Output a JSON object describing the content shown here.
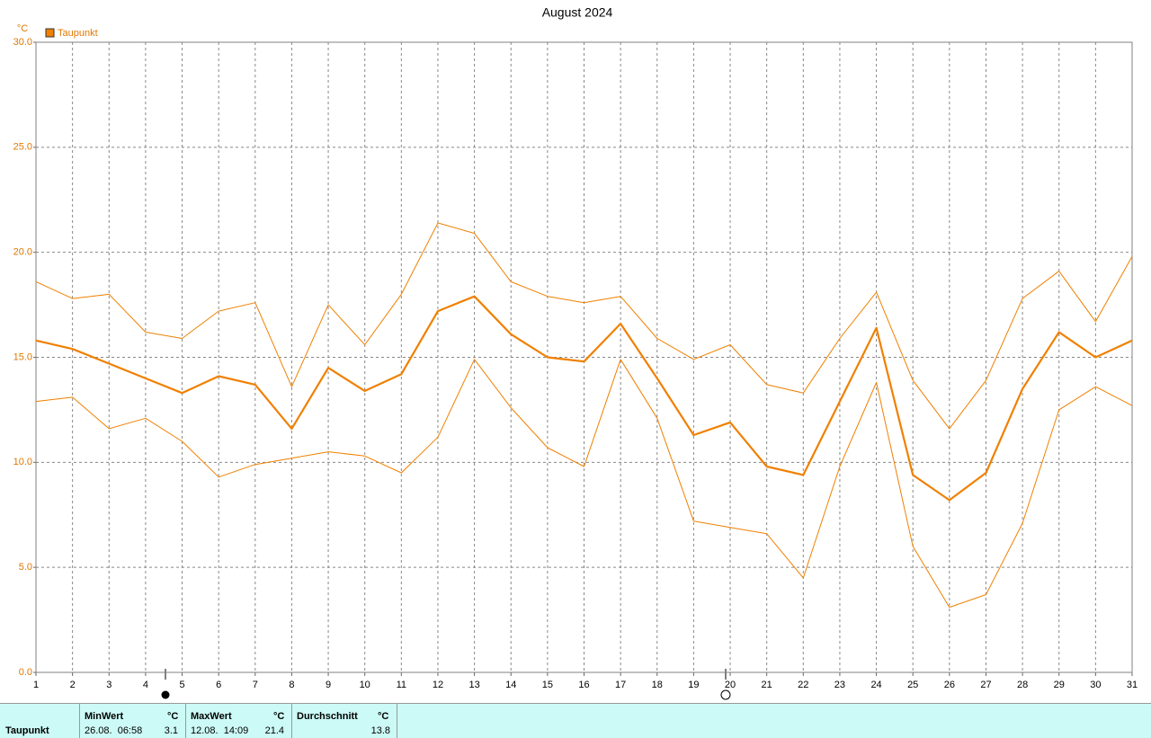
{
  "chart_data": {
    "type": "line",
    "title": "August 2024",
    "y_label": "°C",
    "categories": [
      "1",
      "2",
      "3",
      "4",
      "5",
      "6",
      "7",
      "8",
      "9",
      "10",
      "11",
      "12",
      "13",
      "14",
      "15",
      "16",
      "17",
      "18",
      "19",
      "20",
      "21",
      "22",
      "23",
      "24",
      "25",
      "26",
      "27",
      "28",
      "29",
      "30",
      "31"
    ],
    "series": [
      {
        "name": "Taupunkt",
        "color": "#f08000",
        "values": [
          15.8,
          15.4,
          14.7,
          14.0,
          13.3,
          14.1,
          13.7,
          11.6,
          14.5,
          13.4,
          14.2,
          17.2,
          17.9,
          16.1,
          15.0,
          14.8,
          16.6,
          14.0,
          11.3,
          11.9,
          9.8,
          9.4,
          12.9,
          16.4,
          9.4,
          8.2,
          9.5,
          13.5,
          16.2,
          15.0,
          15.8
        ]
      },
      {
        "color": "#f08000",
        "values": [
          18.6,
          17.8,
          18.0,
          16.2,
          15.9,
          17.2,
          17.6,
          13.6,
          17.5,
          15.6,
          18.0,
          21.4,
          20.9,
          18.6,
          17.9,
          17.6,
          17.9,
          15.9,
          14.9,
          15.6,
          13.7,
          13.3,
          15.9,
          18.1,
          13.9,
          11.6,
          13.9,
          17.8,
          19.1,
          16.7,
          19.8
        ]
      },
      {
        "color": "#f08000",
        "values": [
          12.9,
          13.1,
          11.6,
          12.1,
          11.0,
          9.3,
          9.9,
          10.2,
          10.5,
          10.3,
          9.5,
          11.2,
          14.9,
          12.6,
          10.7,
          9.8,
          14.9,
          12.1,
          7.2,
          6.9,
          6.6,
          4.5,
          9.8,
          13.8,
          6.0,
          3.1,
          3.7,
          7.1,
          12.5,
          13.6,
          12.7
        ]
      }
    ],
    "ylim": [
      0,
      30
    ],
    "yticks": [
      {
        "value": 0,
        "label": "0.0"
      },
      {
        "value": 5,
        "label": "5.0"
      },
      {
        "value": 10,
        "label": "10.0"
      },
      {
        "value": 15,
        "label": "15.0"
      },
      {
        "value": 20,
        "label": "20.0"
      },
      {
        "value": 25,
        "label": "25.0"
      },
      {
        "value": 30,
        "label": "30.0"
      }
    ],
    "grid": true,
    "legend": "top-left"
  },
  "table": {
    "header": [
      "MinWert",
      "°C",
      "MaxWert",
      "°C",
      "Durchschnitt",
      "°C"
    ],
    "rows": [
      [
        "Taupunkt",
        "26.08.  06:58",
        "3.1",
        "12.08.  14:09",
        "21.4",
        "13.8"
      ]
    ]
  }
}
